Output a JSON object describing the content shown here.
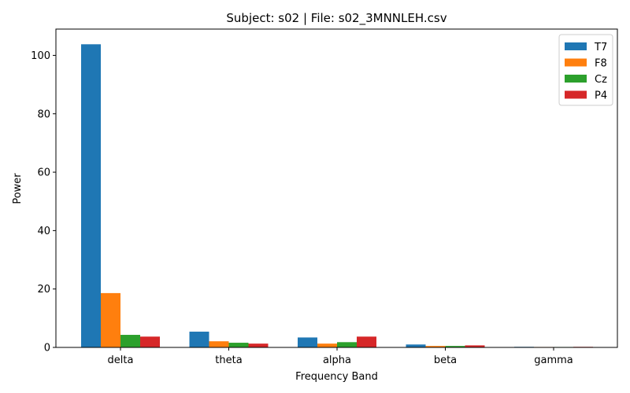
{
  "chart_data": {
    "type": "bar",
    "title": "Subject: s02 | File: s02_3MNNLEH.csv",
    "xlabel": "Frequency Band",
    "ylabel": "Power",
    "categories": [
      "delta",
      "theta",
      "alpha",
      "beta",
      "gamma"
    ],
    "series": [
      {
        "name": "T7",
        "color": "#1f77b4",
        "values": [
          103.8,
          5.4,
          3.4,
          1.0,
          0.2
        ]
      },
      {
        "name": "F8",
        "color": "#ff7f0e",
        "values": [
          18.6,
          2.1,
          1.3,
          0.5,
          0.15
        ]
      },
      {
        "name": "Cz",
        "color": "#2ca02c",
        "values": [
          4.3,
          1.6,
          1.8,
          0.5,
          0.15
        ]
      },
      {
        "name": "P4",
        "color": "#d62728",
        "values": [
          3.7,
          1.3,
          3.7,
          0.7,
          0.2
        ]
      }
    ],
    "ylim": [
      0,
      109
    ],
    "yticks": [
      0,
      20,
      40,
      60,
      80,
      100
    ],
    "grid": false,
    "legend_position": "top-right"
  }
}
